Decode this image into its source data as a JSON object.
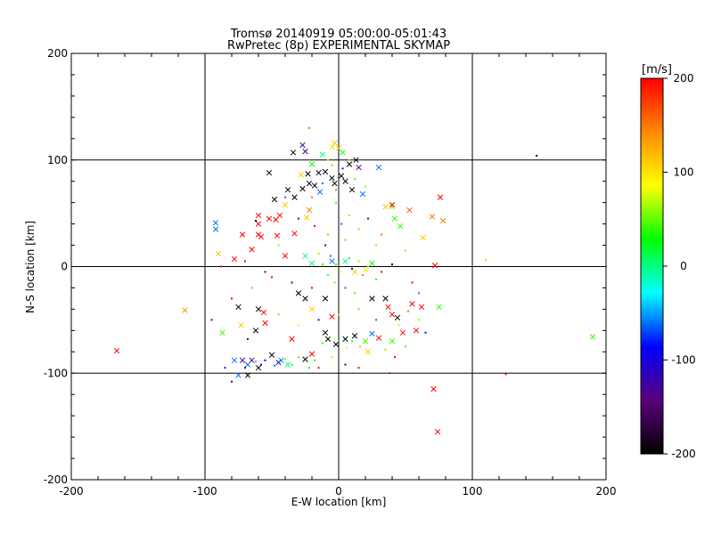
{
  "chart_data": {
    "type": "scatter",
    "title": "Tromsø 20140919 05:00:00-05:01:43",
    "subtitle": "RwPretec (8p) EXPERIMENTAL SKYMAP",
    "xlabel": "E-W location [km]",
    "ylabel": "N-S location [km]",
    "xlim": [
      -200,
      200
    ],
    "ylim": [
      -200,
      200
    ],
    "x_ticks": [
      "-200",
      "-100",
      "0",
      "100",
      "200"
    ],
    "y_ticks": [
      "-200",
      "-100",
      "0",
      "100",
      "200"
    ],
    "grid": true,
    "colorbar": {
      "label": "[m/s]",
      "range": [
        -200,
        200
      ],
      "ticks": [
        "200",
        "100",
        "0",
        "-100",
        "-200"
      ],
      "colormap": [
        "#000000",
        "#5a007a",
        "#0000ff",
        "#00ffff",
        "#00ff00",
        "#ffff00",
        "#ff8800",
        "#ff0000"
      ]
    },
    "markers": [
      "x",
      "dot"
    ],
    "points": [
      {
        "x": -27,
        "y": 114,
        "v": -120,
        "m": "x"
      },
      {
        "x": -25,
        "y": 108,
        "v": -150,
        "m": "x"
      },
      {
        "x": -34,
        "y": 107,
        "v": -200,
        "m": "x"
      },
      {
        "x": -52,
        "y": 88,
        "v": -200,
        "m": "x"
      },
      {
        "x": -12,
        "y": 105,
        "v": 0,
        "m": "x"
      },
      {
        "x": -5,
        "y": 112,
        "v": 100,
        "m": "x"
      },
      {
        "x": -3,
        "y": 116,
        "v": 110,
        "m": "x"
      },
      {
        "x": 0,
        "y": 111,
        "v": 110,
        "m": "x"
      },
      {
        "x": 3,
        "y": 107,
        "v": 20,
        "m": "x"
      },
      {
        "x": 8,
        "y": 96,
        "v": -200,
        "m": "x"
      },
      {
        "x": 13,
        "y": 100,
        "v": -200,
        "m": "x"
      },
      {
        "x": 15,
        "y": 93,
        "v": -150,
        "m": "x"
      },
      {
        "x": 30,
        "y": 93,
        "v": -60,
        "m": "x"
      },
      {
        "x": -20,
        "y": 96,
        "v": 30,
        "m": "x"
      },
      {
        "x": -15,
        "y": 88,
        "v": -200,
        "m": "x"
      },
      {
        "x": -10,
        "y": 89,
        "v": -200,
        "m": "x"
      },
      {
        "x": -28,
        "y": 86,
        "v": 110,
        "m": "x"
      },
      {
        "x": -23,
        "y": 87,
        "v": -200,
        "m": "x"
      },
      {
        "x": 2,
        "y": 85,
        "v": -200,
        "m": "x"
      },
      {
        "x": 5,
        "y": 80,
        "v": -200,
        "m": "x"
      },
      {
        "x": -5,
        "y": 83,
        "v": -200,
        "m": "x"
      },
      {
        "x": -3,
        "y": 78,
        "v": -200,
        "m": "x"
      },
      {
        "x": -22,
        "y": 78,
        "v": -200,
        "m": "x"
      },
      {
        "x": -18,
        "y": 76,
        "v": -200,
        "m": "x"
      },
      {
        "x": -27,
        "y": 73,
        "v": -200,
        "m": "x"
      },
      {
        "x": -38,
        "y": 72,
        "v": -200,
        "m": "x"
      },
      {
        "x": -33,
        "y": 65,
        "v": -200,
        "m": "x"
      },
      {
        "x": -14,
        "y": 70,
        "v": -60,
        "m": "x"
      },
      {
        "x": 10,
        "y": 72,
        "v": -200,
        "m": "x"
      },
      {
        "x": 18,
        "y": 68,
        "v": -60,
        "m": "x"
      },
      {
        "x": -48,
        "y": 63,
        "v": -200,
        "m": "x"
      },
      {
        "x": -40,
        "y": 58,
        "v": 110,
        "m": "x"
      },
      {
        "x": -52,
        "y": 45,
        "v": 200,
        "m": "x"
      },
      {
        "x": -47,
        "y": 44,
        "v": 200,
        "m": "x"
      },
      {
        "x": -44,
        "y": 48,
        "v": 200,
        "m": "x"
      },
      {
        "x": -60,
        "y": 48,
        "v": 200,
        "m": "x"
      },
      {
        "x": -60,
        "y": 40,
        "v": 200,
        "m": "x"
      },
      {
        "x": -58,
        "y": 28,
        "v": 200,
        "m": "x"
      },
      {
        "x": -60,
        "y": 30,
        "v": 200,
        "m": "x"
      },
      {
        "x": -24,
        "y": 46,
        "v": 110,
        "m": "x"
      },
      {
        "x": -22,
        "y": 53,
        "v": 150,
        "m": "x"
      },
      {
        "x": 35,
        "y": 56,
        "v": 110,
        "m": "x"
      },
      {
        "x": 40,
        "y": 56,
        "v": 60,
        "m": "x"
      },
      {
        "x": 40,
        "y": 58,
        "v": 200,
        "m": "x"
      },
      {
        "x": 53,
        "y": 53,
        "v": 160,
        "m": "x"
      },
      {
        "x": 46,
        "y": 38,
        "v": 40,
        "m": "x"
      },
      {
        "x": 42,
        "y": 45,
        "v": 40,
        "m": "x"
      },
      {
        "x": 63,
        "y": 27,
        "v": 110,
        "m": "x"
      },
      {
        "x": 70,
        "y": 47,
        "v": 150,
        "m": "x"
      },
      {
        "x": 76,
        "y": 65,
        "v": 200,
        "m": "x"
      },
      {
        "x": 78,
        "y": 43,
        "v": 150,
        "m": "x"
      },
      {
        "x": -92,
        "y": 41,
        "v": -60,
        "m": "x"
      },
      {
        "x": -92,
        "y": 35,
        "v": -60,
        "m": "x"
      },
      {
        "x": -90,
        "y": 12,
        "v": 110,
        "m": "x"
      },
      {
        "x": -78,
        "y": 7,
        "v": 200,
        "m": "x"
      },
      {
        "x": -72,
        "y": 30,
        "v": 200,
        "m": "x"
      },
      {
        "x": -65,
        "y": 16,
        "v": 200,
        "m": "x"
      },
      {
        "x": -46,
        "y": 29,
        "v": 200,
        "m": "x"
      },
      {
        "x": -40,
        "y": 10,
        "v": 200,
        "m": "x"
      },
      {
        "x": -33,
        "y": 31,
        "v": 200,
        "m": "x"
      },
      {
        "x": -25,
        "y": 10,
        "v": 0,
        "m": "x"
      },
      {
        "x": -20,
        "y": 3,
        "v": 0,
        "m": "x"
      },
      {
        "x": -5,
        "y": 5,
        "v": -60,
        "m": "x"
      },
      {
        "x": 5,
        "y": 5,
        "v": 0,
        "m": "x"
      },
      {
        "x": 12,
        "y": -5,
        "v": 110,
        "m": "x"
      },
      {
        "x": 20,
        "y": -3,
        "v": 80,
        "m": "x"
      },
      {
        "x": 25,
        "y": 3,
        "v": 30,
        "m": "x"
      },
      {
        "x": 72,
        "y": 1,
        "v": 200,
        "m": "x"
      },
      {
        "x": -30,
        "y": -25,
        "v": -200,
        "m": "x"
      },
      {
        "x": -25,
        "y": -30,
        "v": -200,
        "m": "x"
      },
      {
        "x": -20,
        "y": -40,
        "v": 110,
        "m": "x"
      },
      {
        "x": -5,
        "y": -47,
        "v": 200,
        "m": "x"
      },
      {
        "x": -10,
        "y": -30,
        "v": -200,
        "m": "x"
      },
      {
        "x": 25,
        "y": -30,
        "v": -200,
        "m": "x"
      },
      {
        "x": 35,
        "y": -30,
        "v": -200,
        "m": "x"
      },
      {
        "x": 37,
        "y": -38,
        "v": 200,
        "m": "x"
      },
      {
        "x": 40,
        "y": -45,
        "v": 200,
        "m": "x"
      },
      {
        "x": 44,
        "y": -48,
        "v": -200,
        "m": "x"
      },
      {
        "x": 55,
        "y": -35,
        "v": 200,
        "m": "x"
      },
      {
        "x": 62,
        "y": -38,
        "v": 200,
        "m": "x"
      },
      {
        "x": 58,
        "y": -60,
        "v": 200,
        "m": "x"
      },
      {
        "x": 75,
        "y": -38,
        "v": 40,
        "m": "x"
      },
      {
        "x": -56,
        "y": -43,
        "v": 200,
        "m": "x"
      },
      {
        "x": -55,
        "y": -53,
        "v": 200,
        "m": "x"
      },
      {
        "x": -60,
        "y": -40,
        "v": -200,
        "m": "x"
      },
      {
        "x": -75,
        "y": -38,
        "v": -200,
        "m": "x"
      },
      {
        "x": -73,
        "y": -55,
        "v": 110,
        "m": "x"
      },
      {
        "x": -62,
        "y": -60,
        "v": -200,
        "m": "x"
      },
      {
        "x": -87,
        "y": -62,
        "v": 40,
        "m": "x"
      },
      {
        "x": -115,
        "y": -41,
        "v": 140,
        "m": "x"
      },
      {
        "x": -35,
        "y": -68,
        "v": 200,
        "m": "x"
      },
      {
        "x": -10,
        "y": -62,
        "v": -200,
        "m": "x"
      },
      {
        "x": -8,
        "y": -68,
        "v": -200,
        "m": "x"
      },
      {
        "x": -2,
        "y": -73,
        "v": -200,
        "m": "x"
      },
      {
        "x": 5,
        "y": -68,
        "v": -200,
        "m": "x"
      },
      {
        "x": 12,
        "y": -65,
        "v": -200,
        "m": "x"
      },
      {
        "x": 20,
        "y": -70,
        "v": 40,
        "m": "x"
      },
      {
        "x": 25,
        "y": -63,
        "v": -60,
        "m": "x"
      },
      {
        "x": 30,
        "y": -67,
        "v": 200,
        "m": "x"
      },
      {
        "x": 40,
        "y": -70,
        "v": 40,
        "m": "x"
      },
      {
        "x": 48,
        "y": -62,
        "v": 200,
        "m": "x"
      },
      {
        "x": 22,
        "y": -80,
        "v": 110,
        "m": "x"
      },
      {
        "x": -20,
        "y": -82,
        "v": 200,
        "m": "x"
      },
      {
        "x": -25,
        "y": -87,
        "v": -200,
        "m": "x"
      },
      {
        "x": -50,
        "y": -83,
        "v": -200,
        "m": "x"
      },
      {
        "x": -45,
        "y": -90,
        "v": -120,
        "m": "x"
      },
      {
        "x": -60,
        "y": -95,
        "v": -200,
        "m": "x"
      },
      {
        "x": -65,
        "y": -88,
        "v": -150,
        "m": "x"
      },
      {
        "x": -68,
        "y": -92,
        "v": -60,
        "m": "x"
      },
      {
        "x": -72,
        "y": -88,
        "v": -120,
        "m": "x"
      },
      {
        "x": -78,
        "y": -88,
        "v": -60,
        "m": "x"
      },
      {
        "x": -75,
        "y": -102,
        "v": -60,
        "m": "x"
      },
      {
        "x": -68,
        "y": -102,
        "v": -200,
        "m": "x"
      },
      {
        "x": -43,
        "y": -88,
        "v": -60,
        "m": "x"
      },
      {
        "x": -38,
        "y": -92,
        "v": 0,
        "m": "x"
      },
      {
        "x": -166,
        "y": -79,
        "v": 200,
        "m": "x"
      },
      {
        "x": 71,
        "y": -115,
        "v": 200,
        "m": "x"
      },
      {
        "x": 74,
        "y": -155,
        "v": 200,
        "m": "x"
      },
      {
        "x": 190,
        "y": -66,
        "v": 40,
        "m": "x"
      },
      {
        "x": -22,
        "y": 130,
        "v": 150,
        "m": "dot"
      },
      {
        "x": 148,
        "y": 104,
        "v": -200,
        "m": "dot"
      },
      {
        "x": 110,
        "y": 6,
        "v": 120,
        "m": "dot"
      },
      {
        "x": 125,
        "y": -101,
        "v": 200,
        "m": "dot"
      },
      {
        "x": -88,
        "y": 0,
        "v": 200,
        "m": "dot"
      },
      {
        "x": -62,
        "y": 43,
        "v": -200,
        "m": "dot"
      },
      {
        "x": -45,
        "y": 20,
        "v": 60,
        "m": "dot"
      },
      {
        "x": -30,
        "y": 45,
        "v": -150,
        "m": "dot"
      },
      {
        "x": -18,
        "y": 38,
        "v": 200,
        "m": "dot"
      },
      {
        "x": -8,
        "y": 30,
        "v": 40,
        "m": "dot"
      },
      {
        "x": -2,
        "y": 60,
        "v": 40,
        "m": "dot"
      },
      {
        "x": 2,
        "y": 40,
        "v": -60,
        "m": "dot"
      },
      {
        "x": 8,
        "y": 48,
        "v": 60,
        "m": "dot"
      },
      {
        "x": 15,
        "y": 35,
        "v": 120,
        "m": "dot"
      },
      {
        "x": 22,
        "y": 45,
        "v": -150,
        "m": "dot"
      },
      {
        "x": 28,
        "y": 20,
        "v": 60,
        "m": "dot"
      },
      {
        "x": 32,
        "y": 30,
        "v": 150,
        "m": "dot"
      },
      {
        "x": 5,
        "y": 25,
        "v": 40,
        "m": "dot"
      },
      {
        "x": -10,
        "y": 20,
        "v": -150,
        "m": "dot"
      },
      {
        "x": -15,
        "y": 12,
        "v": 60,
        "m": "dot"
      },
      {
        "x": -12,
        "y": 2,
        "v": 20,
        "m": "dot"
      },
      {
        "x": -6,
        "y": 10,
        "v": -60,
        "m": "dot"
      },
      {
        "x": -2,
        "y": 2,
        "v": 40,
        "m": "dot"
      },
      {
        "x": 2,
        "y": -5,
        "v": 80,
        "m": "dot"
      },
      {
        "x": 8,
        "y": 8,
        "v": 0,
        "m": "dot"
      },
      {
        "x": 10,
        "y": -2,
        "v": -100,
        "m": "dot"
      },
      {
        "x": 15,
        "y": 5,
        "v": 60,
        "m": "dot"
      },
      {
        "x": 18,
        "y": -8,
        "v": 150,
        "m": "dot"
      },
      {
        "x": 22,
        "y": 0,
        "v": 100,
        "m": "dot"
      },
      {
        "x": 28,
        "y": -12,
        "v": 40,
        "m": "dot"
      },
      {
        "x": 32,
        "y": -5,
        "v": 200,
        "m": "dot"
      },
      {
        "x": 40,
        "y": 2,
        "v": -200,
        "m": "dot"
      },
      {
        "x": -8,
        "y": -8,
        "v": 0,
        "m": "dot"
      },
      {
        "x": -3,
        "y": -15,
        "v": 60,
        "m": "dot"
      },
      {
        "x": 5,
        "y": -20,
        "v": -60,
        "m": "dot"
      },
      {
        "x": 12,
        "y": -25,
        "v": 40,
        "m": "dot"
      },
      {
        "x": -20,
        "y": -20,
        "v": 200,
        "m": "dot"
      },
      {
        "x": -35,
        "y": -15,
        "v": -150,
        "m": "dot"
      },
      {
        "x": -50,
        "y": -10,
        "v": 200,
        "m": "dot"
      },
      {
        "x": -65,
        "y": -20,
        "v": 40,
        "m": "dot"
      },
      {
        "x": -80,
        "y": -30,
        "v": 200,
        "m": "dot"
      },
      {
        "x": -95,
        "y": -50,
        "v": -150,
        "m": "dot"
      },
      {
        "x": -45,
        "y": -45,
        "v": 40,
        "m": "dot"
      },
      {
        "x": -30,
        "y": -55,
        "v": 80,
        "m": "dot"
      },
      {
        "x": -15,
        "y": -50,
        "v": -100,
        "m": "dot"
      },
      {
        "x": 0,
        "y": -45,
        "v": 60,
        "m": "dot"
      },
      {
        "x": 15,
        "y": -40,
        "v": 40,
        "m": "dot"
      },
      {
        "x": 28,
        "y": -50,
        "v": -60,
        "m": "dot"
      },
      {
        "x": 45,
        "y": -55,
        "v": 100,
        "m": "dot"
      },
      {
        "x": 52,
        "y": -42,
        "v": 150,
        "m": "dot"
      },
      {
        "x": 60,
        "y": -50,
        "v": 60,
        "m": "dot"
      },
      {
        "x": 65,
        "y": -62,
        "v": -100,
        "m": "dot"
      },
      {
        "x": -12,
        "y": -72,
        "v": 40,
        "m": "dot"
      },
      {
        "x": -6,
        "y": -66,
        "v": 60,
        "m": "dot"
      },
      {
        "x": 0,
        "y": -70,
        "v": 20,
        "m": "dot"
      },
      {
        "x": 6,
        "y": -76,
        "v": 80,
        "m": "dot"
      },
      {
        "x": 10,
        "y": -70,
        "v": 40,
        "m": "dot"
      },
      {
        "x": 16,
        "y": -75,
        "v": 120,
        "m": "dot"
      },
      {
        "x": 35,
        "y": -78,
        "v": 60,
        "m": "dot"
      },
      {
        "x": 42,
        "y": -85,
        "v": 200,
        "m": "dot"
      },
      {
        "x": 50,
        "y": -75,
        "v": 40,
        "m": "dot"
      },
      {
        "x": -5,
        "y": -85,
        "v": 60,
        "m": "dot"
      },
      {
        "x": 5,
        "y": -92,
        "v": -150,
        "m": "dot"
      },
      {
        "x": -15,
        "y": -95,
        "v": 200,
        "m": "dot"
      },
      {
        "x": -30,
        "y": -85,
        "v": 40,
        "m": "dot"
      },
      {
        "x": -35,
        "y": -92,
        "v": 20,
        "m": "dot"
      },
      {
        "x": -40,
        "y": -87,
        "v": 60,
        "m": "dot"
      },
      {
        "x": -48,
        "y": -93,
        "v": -60,
        "m": "dot"
      },
      {
        "x": -55,
        "y": -88,
        "v": -100,
        "m": "dot"
      },
      {
        "x": -58,
        "y": -92,
        "v": -80,
        "m": "dot"
      },
      {
        "x": -62,
        "y": -89,
        "v": -40,
        "m": "dot"
      },
      {
        "x": -70,
        "y": -95,
        "v": -150,
        "m": "dot"
      },
      {
        "x": -85,
        "y": -95,
        "v": -120,
        "m": "dot"
      },
      {
        "x": -80,
        "y": -108,
        "v": -150,
        "m": "dot"
      },
      {
        "x": -18,
        "y": -88,
        "v": 40,
        "m": "dot"
      },
      {
        "x": -22,
        "y": -95,
        "v": 20,
        "m": "dot"
      },
      {
        "x": 15,
        "y": -95,
        "v": 200,
        "m": "dot"
      },
      {
        "x": 38,
        "y": -100,
        "v": 200,
        "m": "dot"
      },
      {
        "x": 20,
        "y": 75,
        "v": 60,
        "m": "dot"
      },
      {
        "x": -20,
        "y": 65,
        "v": 150,
        "m": "dot"
      },
      {
        "x": -40,
        "y": 65,
        "v": -60,
        "m": "dot"
      },
      {
        "x": -5,
        "y": 95,
        "v": 40,
        "m": "dot"
      },
      {
        "x": 8,
        "y": 100,
        "v": 60,
        "m": "dot"
      },
      {
        "x": 3,
        "y": 92,
        "v": -100,
        "m": "dot"
      },
      {
        "x": -8,
        "y": 100,
        "v": 100,
        "m": "dot"
      },
      {
        "x": 12,
        "y": 82,
        "v": 40,
        "m": "dot"
      },
      {
        "x": -12,
        "y": 78,
        "v": -60,
        "m": "dot"
      },
      {
        "x": -2,
        "y": 72,
        "v": 150,
        "m": "dot"
      },
      {
        "x": 50,
        "y": 15,
        "v": 60,
        "m": "dot"
      },
      {
        "x": 55,
        "y": -15,
        "v": 200,
        "m": "dot"
      },
      {
        "x": 60,
        "y": -25,
        "v": -60,
        "m": "dot"
      },
      {
        "x": -70,
        "y": 5,
        "v": 200,
        "m": "dot"
      },
      {
        "x": -55,
        "y": -5,
        "v": -150,
        "m": "dot"
      },
      {
        "x": -68,
        "y": -68,
        "v": -150,
        "m": "dot"
      }
    ]
  }
}
